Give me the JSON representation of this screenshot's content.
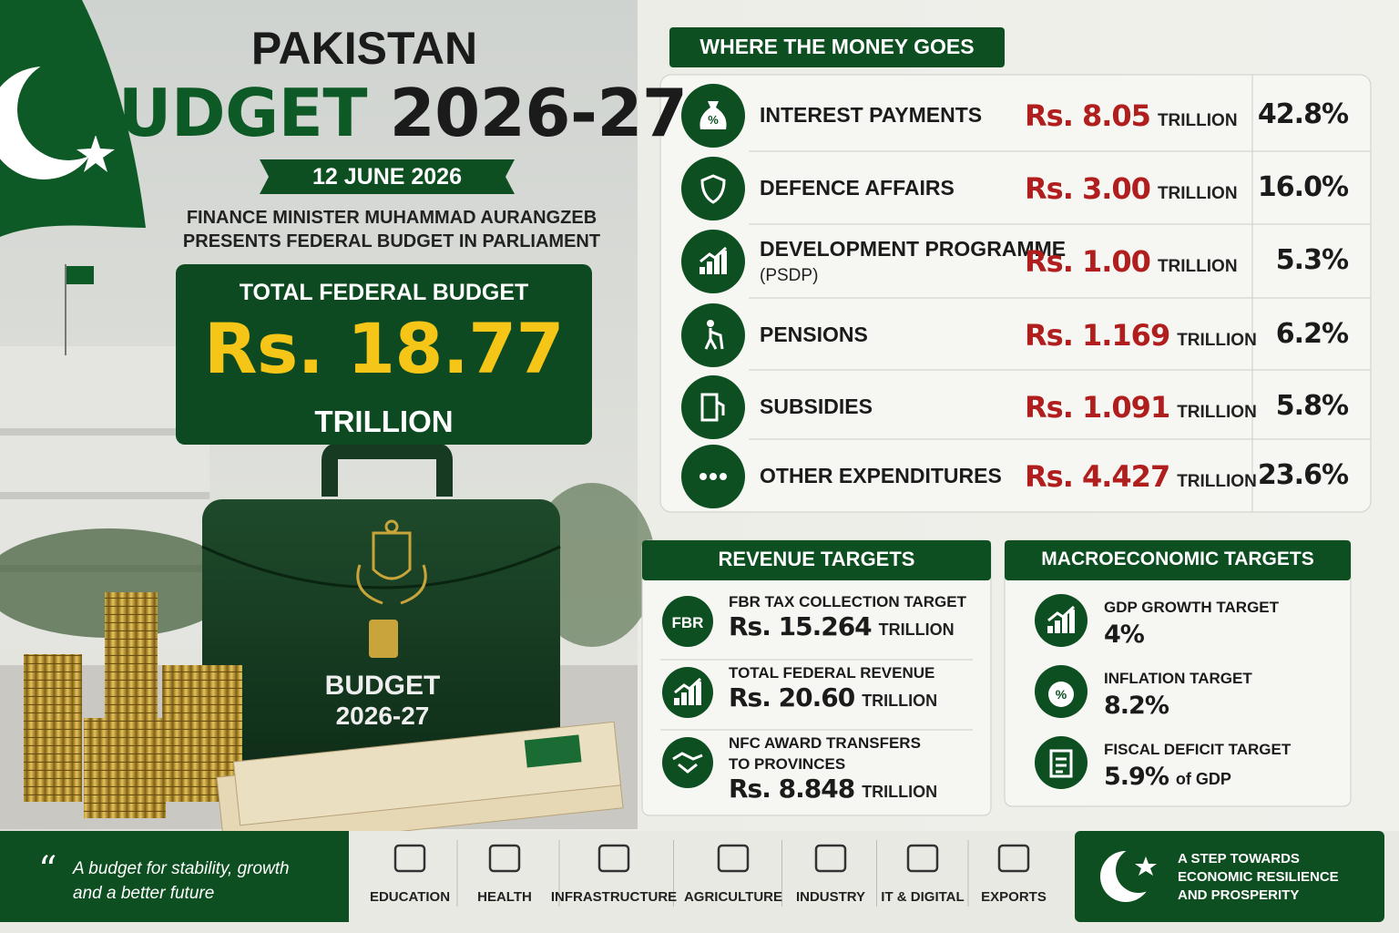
{
  "header": {
    "title": "PAKISTAN",
    "title_highlight": "BUDGET",
    "title_year": "2026-27",
    "date": "12 JUNE 2026",
    "description": [
      "FINANCE MINISTER MUHAMMAD AURANGZEB",
      "PRESENTS FEDERAL BUDGET IN PARLIAMENT"
    ]
  },
  "total_budget": {
    "label": "TOTAL FEDERAL BUDGET",
    "amount": "Rs. 18.77",
    "unit": "TRILLION"
  },
  "briefcase": {
    "label": "BUDGET",
    "year": "2026-27"
  },
  "spending": {
    "title": "WHERE THE MONEY GOES",
    "rows": [
      {
        "icon_text": "%",
        "label": "INTEREST PAYMENTS",
        "amount": "Rs. 8.05",
        "unit": "TRILLION",
        "share": "42.8%"
      },
      {
        "label": "DEFENCE AFFAIRS",
        "amount": "Rs. 3.00",
        "unit": "TRILLION",
        "share": "16.0%"
      },
      {
        "label": "DEVELOPMENT PROGRAMME",
        "note": "(PSDP)",
        "amount": "Rs. 1.00",
        "unit": "TRILLION",
        "share": "5.3%"
      },
      {
        "label": "PENSIONS",
        "amount": "Rs. 1.169",
        "unit": "TRILLION",
        "share": "6.2%"
      },
      {
        "label": "SUBSIDIES",
        "amount": "Rs. 1.091",
        "unit": "TRILLION",
        "share": "5.8%"
      },
      {
        "label": "OTHER EXPENDITURES",
        "amount": "Rs. 4.427",
        "unit": "TRILLION",
        "share": "23.6%"
      }
    ]
  },
  "revenue": {
    "title": "REVENUE TARGETS",
    "items": [
      {
        "icon_text": "FBR",
        "label": [
          "FBR TAX COLLECTION TARGET"
        ],
        "amount": "Rs. 15.264",
        "unit": "TRILLION"
      },
      {
        "label": [
          "TOTAL FEDERAL REVENUE"
        ],
        "amount": "Rs. 20.60",
        "unit": "TRILLION"
      },
      {
        "label": [
          "NFC AWARD TRANSFERS",
          "TO PROVINCES"
        ],
        "amount": "Rs. 8.848",
        "unit": "TRILLION"
      }
    ]
  },
  "macro": {
    "title": "MACROECONOMIC TARGETS",
    "items": [
      {
        "label": "GDP GROWTH TARGET",
        "value": "4%"
      },
      {
        "icon_text": "%",
        "label": "INFLATION TARGET",
        "value": "8.2%"
      },
      {
        "label": "FISCAL DEFICIT TARGET",
        "value": "5.9%",
        "suffix": "of GDP"
      }
    ]
  },
  "footer": {
    "quote": [
      "A budget for stability, growth",
      "and a better future"
    ],
    "sectors": [
      "EDUCATION",
      "HEALTH",
      "INFRASTRUCTURE",
      "AGRICULTURE",
      "INDUSTRY",
      "IT & DIGITAL",
      "EXPORTS"
    ],
    "closing": [
      "A STEP TOWARDS",
      "ECONOMIC RESILIENCE",
      "AND PROSPERITY"
    ]
  }
}
